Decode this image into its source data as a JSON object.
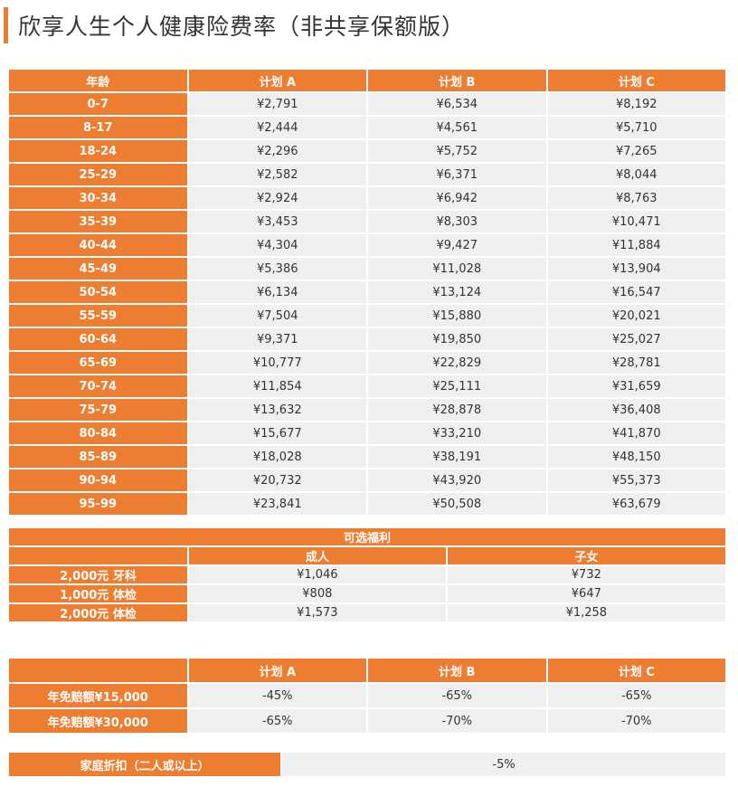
{
  "title": "欣享人生个人健康险费率（非共享保额版）",
  "rates": {
    "headers": [
      "年龄",
      "计划 A",
      "计划 B",
      "计划 C"
    ],
    "rows": [
      [
        "0-7",
        "¥2,791",
        "¥6,534",
        "¥8,192"
      ],
      [
        "8-17",
        "¥2,444",
        "¥4,561",
        "¥5,710"
      ],
      [
        "18-24",
        "¥2,296",
        "¥5,752",
        "¥7,265"
      ],
      [
        "25-29",
        "¥2,582",
        "¥6,371",
        "¥8,044"
      ],
      [
        "30-34",
        "¥2,924",
        "¥6,942",
        "¥8,763"
      ],
      [
        "35-39",
        "¥3,453",
        "¥8,303",
        "¥10,471"
      ],
      [
        "40-44",
        "¥4,304",
        "¥9,427",
        "¥11,884"
      ],
      [
        "45-49",
        "¥5,386",
        "¥11,028",
        "¥13,904"
      ],
      [
        "50-54",
        "¥6,134",
        "¥13,124",
        "¥16,547"
      ],
      [
        "55-59",
        "¥7,504",
        "¥15,880",
        "¥20,021"
      ],
      [
        "60-64",
        "¥9,371",
        "¥19,850",
        "¥25,027"
      ],
      [
        "65-69",
        "¥10,777",
        "¥22,829",
        "¥28,781"
      ],
      [
        "70-74",
        "¥11,854",
        "¥25,111",
        "¥31,659"
      ],
      [
        "75-79",
        "¥13,632",
        "¥28,878",
        "¥36,408"
      ],
      [
        "80-84",
        "¥15,677",
        "¥33,210",
        "¥41,870"
      ],
      [
        "85-89",
        "¥18,028",
        "¥38,191",
        "¥48,150"
      ],
      [
        "90-94",
        "¥20,732",
        "¥43,920",
        "¥55,373"
      ],
      [
        "95-99",
        "¥23,841",
        "¥50,508",
        "¥63,679"
      ]
    ]
  },
  "benefits": {
    "title": "可选福利",
    "headers": [
      "成人",
      "子女"
    ],
    "rows": [
      [
        "2,000元 牙科",
        "¥1,046",
        "¥732"
      ],
      [
        "1,000元 体检",
        "¥808",
        "¥647"
      ],
      [
        "2,000元 体检",
        "¥1,573",
        "¥1,258"
      ]
    ]
  },
  "deductible": {
    "headers": [
      "计划 A",
      "计划 B",
      "计划 C"
    ],
    "rows": [
      [
        "年免赔额¥15,000",
        "-45%",
        "-65%",
        "-65%"
      ],
      [
        "年免赔额¥30,000",
        "-65%",
        "-70%",
        "-70%"
      ]
    ]
  },
  "family": {
    "label": "家庭折扣（二人或以上）",
    "value": "-5%"
  },
  "colors": {
    "accent": "#ED7D31",
    "cell_bg": "#EFEFEF"
  }
}
